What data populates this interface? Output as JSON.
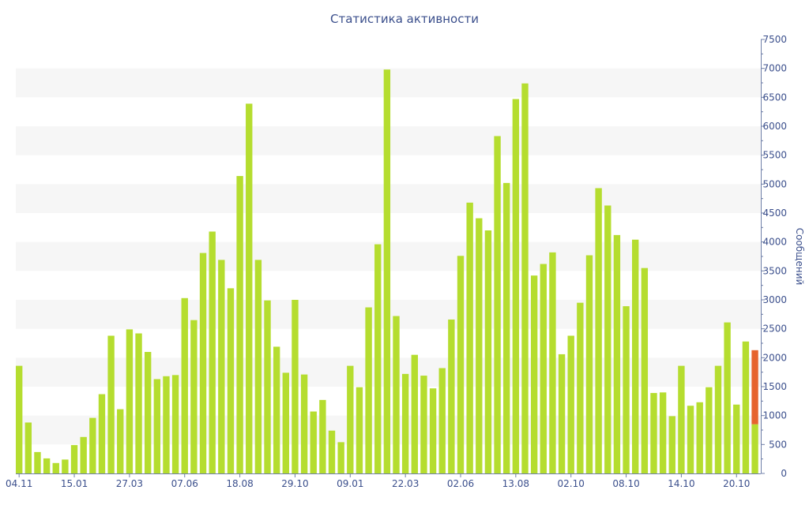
{
  "title": "Статистика активности",
  "chart_data": {
    "type": "bar",
    "title": "Статистика активности",
    "ylabel": "Сообщений",
    "xlabel": "",
    "ylim": [
      0,
      7500
    ],
    "yticks": [
      0,
      500,
      1000,
      1500,
      2000,
      2500,
      3000,
      3500,
      4000,
      4500,
      5000,
      5500,
      6000,
      6500,
      7000,
      7500
    ],
    "y_axis_position": "right",
    "grid": "alternating horizontal bands",
    "xtick_labels": [
      {
        "index": 0,
        "label": "04.11"
      },
      {
        "index": 6,
        "label": "15.01"
      },
      {
        "index": 12,
        "label": "27.03"
      },
      {
        "index": 18,
        "label": "07.06"
      },
      {
        "index": 24,
        "label": "18.08"
      },
      {
        "index": 30,
        "label": "29.10"
      },
      {
        "index": 36,
        "label": "09.01"
      },
      {
        "index": 42,
        "label": "22.03"
      },
      {
        "index": 48,
        "label": "02.06"
      },
      {
        "index": 54,
        "label": "13.08"
      },
      {
        "index": 60,
        "label": "02.10"
      },
      {
        "index": 66,
        "label": "08.10"
      },
      {
        "index": 72,
        "label": "14.10"
      },
      {
        "index": 78,
        "label": "20.10"
      }
    ],
    "values": [
      1860,
      880,
      370,
      260,
      180,
      240,
      490,
      630,
      960,
      1370,
      2380,
      1110,
      2490,
      2420,
      2100,
      1630,
      1680,
      1700,
      3030,
      2650,
      3810,
      4180,
      3690,
      3200,
      5140,
      6390,
      3690,
      2990,
      2190,
      1740,
      3000,
      1710,
      1070,
      1270,
      740,
      540,
      1860,
      1490,
      2870,
      3960,
      6980,
      2720,
      1720,
      2050,
      1690,
      1470,
      1820,
      2660,
      3760,
      4680,
      4410,
      4200,
      5830,
      5020,
      6470,
      6740,
      3420,
      3620,
      3820,
      2060,
      2380,
      2950,
      3770,
      4930,
      4630,
      4120,
      2890,
      4040,
      3550,
      1390,
      1400,
      990,
      1860,
      1170,
      1230,
      1490,
      1860,
      2610,
      1190,
      2280,
      850
    ],
    "highlight": {
      "index": 80,
      "extra": 1280
    },
    "colors": {
      "bar": "#b5dd2f",
      "highlight": "#e6632e",
      "text": "#3b4f8c",
      "band": "#f6f6f6",
      "axis": "#6f7fa8"
    }
  }
}
